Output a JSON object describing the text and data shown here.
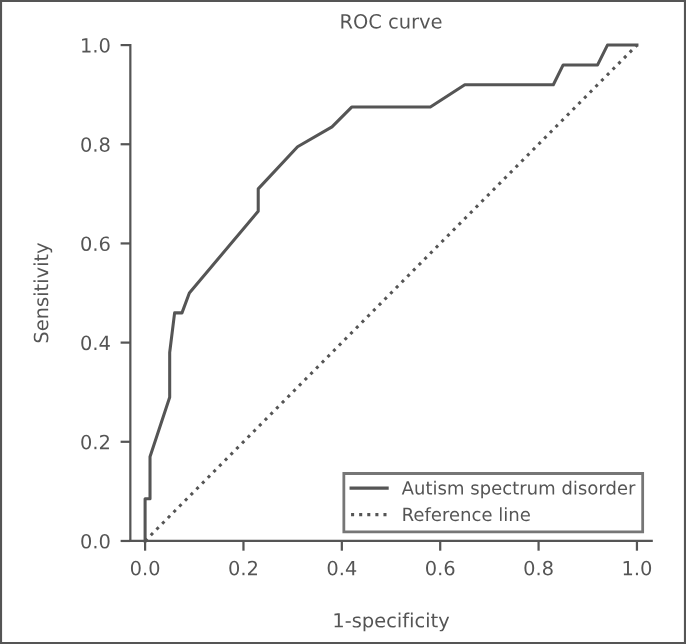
{
  "chart_data": {
    "type": "line",
    "title": "ROC curve",
    "xlabel": "1-specificity",
    "ylabel": "Sensitivity",
    "xlim": [
      -0.03,
      1.03
    ],
    "ylim": [
      0,
      1.0
    ],
    "xticks": [
      {
        "value": 0,
        "label": "0.0"
      },
      0.2,
      0.4,
      0.6,
      0.8,
      {
        "value": 1,
        "label": "1.0"
      }
    ],
    "yticks": [
      {
        "value": 0,
        "label": "0.0"
      },
      0.2,
      0.4,
      0.6,
      0.8,
      {
        "value": 1,
        "label": "1.0"
      }
    ],
    "legend": "bottom right",
    "grid": false,
    "marker": "none",
    "series": [
      {
        "name": "Autism spectrum disorder",
        "color": "#555555",
        "line_style": "solid",
        "x": [
          0,
          0,
          0.01,
          0.01,
          0.05,
          0.05,
          0.06,
          0.075,
          0.09,
          0.23,
          0.23,
          0.31,
          0.38,
          0.42,
          0.58,
          0.65,
          0.83,
          0.85,
          0.92,
          0.94,
          1.0
        ],
        "values": [
          0,
          0.085,
          0.085,
          0.17,
          0.29,
          0.38,
          0.46,
          0.46,
          0.5,
          0.665,
          0.71,
          0.795,
          0.835,
          0.875,
          0.875,
          0.92,
          0.92,
          0.96,
          0.96,
          1.0,
          1.0
        ]
      },
      {
        "name": "Reference line",
        "color": "#555555",
        "line_style": "dotted",
        "x": [
          0,
          1
        ],
        "values": [
          0,
          1
        ]
      }
    ]
  }
}
